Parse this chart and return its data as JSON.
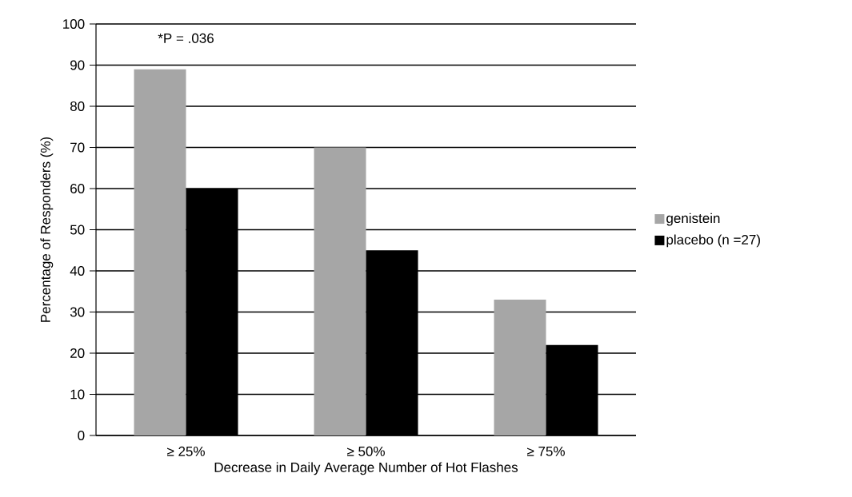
{
  "chart_data": {
    "type": "bar",
    "xlabel": "Decrease in Daily Average Number of Hot Flashes",
    "ylabel": "Percentage of Responders (%)",
    "categories": [
      "≥ 25%",
      "≥ 50%",
      "≥ 75%"
    ],
    "series": [
      {
        "name": "genistein",
        "color": "#a6a6a6",
        "values": [
          89,
          70,
          33
        ]
      },
      {
        "name": "placebo (n =27)",
        "color": "#000000",
        "values": [
          60,
          45,
          22
        ]
      }
    ],
    "ylim": [
      0,
      100
    ],
    "yticks": [
      0,
      10,
      20,
      30,
      40,
      50,
      60,
      70,
      80,
      90,
      100
    ],
    "grid": "y",
    "legend": "right",
    "annotations": [
      "*P = .036"
    ]
  }
}
